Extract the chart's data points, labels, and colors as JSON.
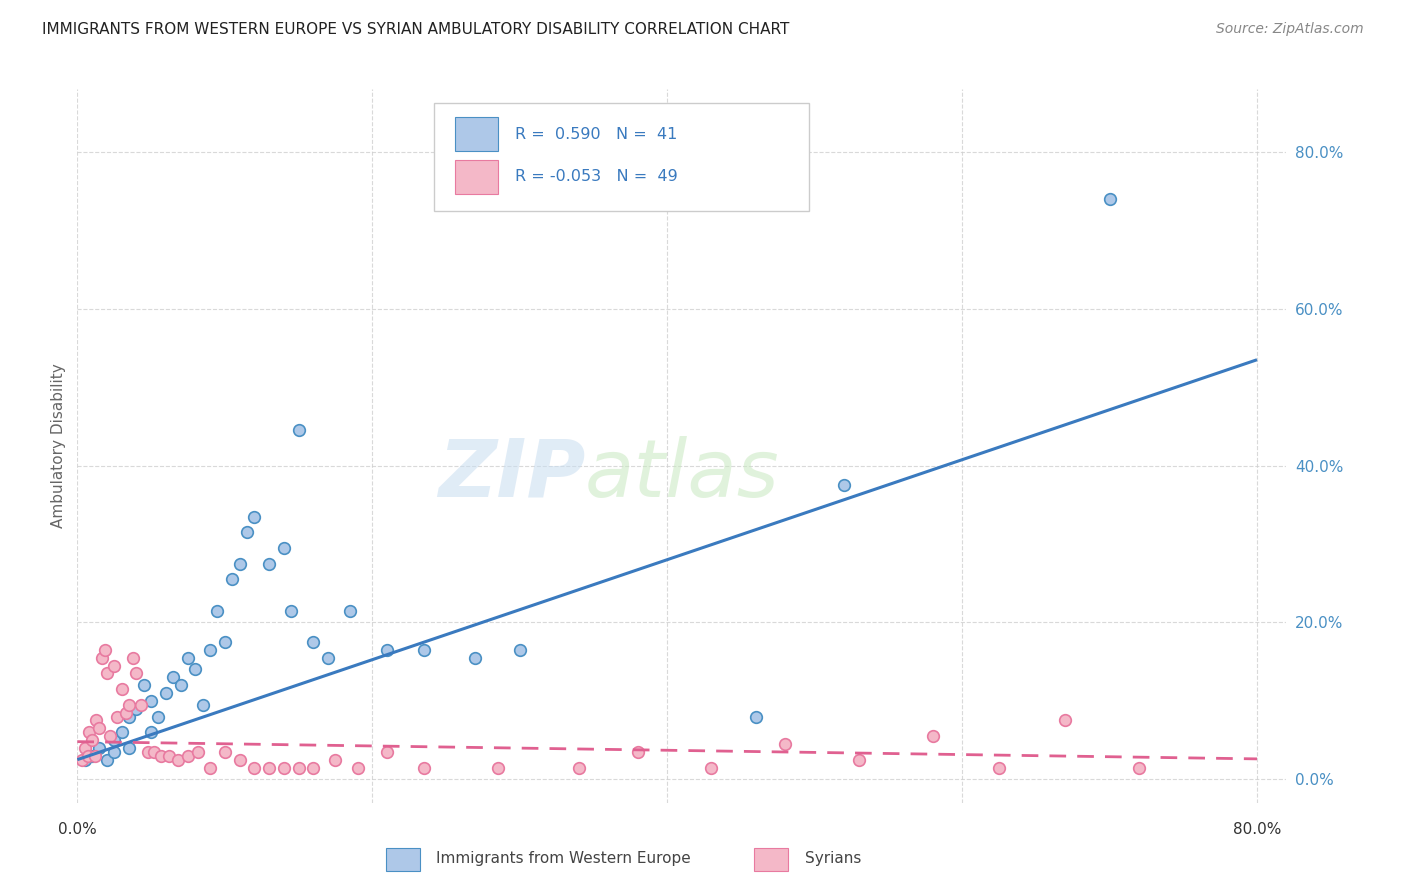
{
  "title": "IMMIGRANTS FROM WESTERN EUROPE VS SYRIAN AMBULATORY DISABILITY CORRELATION CHART",
  "source": "Source: ZipAtlas.com",
  "ylabel": "Ambulatory Disability",
  "xlim": [
    0.0,
    0.82
  ],
  "ylim": [
    -0.03,
    0.88
  ],
  "ytick_values": [
    0.0,
    0.2,
    0.4,
    0.6,
    0.8
  ],
  "xtick_values": [
    0.0,
    0.2,
    0.4,
    0.6,
    0.8
  ],
  "legend_R1": "0.590",
  "legend_N1": "41",
  "legend_R2": "-0.053",
  "legend_N2": "49",
  "blue_color": "#aec8e8",
  "pink_color": "#f4b8c8",
  "blue_edge_color": "#4a90c4",
  "pink_edge_color": "#e87aa0",
  "blue_line_color": "#3a7abf",
  "pink_line_color": "#e06090",
  "right_axis_color": "#4a90c4",
  "blue_scatter_x": [
    0.005,
    0.01,
    0.015,
    0.02,
    0.025,
    0.025,
    0.03,
    0.035,
    0.035,
    0.04,
    0.045,
    0.05,
    0.05,
    0.055,
    0.06,
    0.065,
    0.07,
    0.075,
    0.08,
    0.085,
    0.09,
    0.095,
    0.1,
    0.105,
    0.11,
    0.115,
    0.12,
    0.13,
    0.14,
    0.145,
    0.15,
    0.16,
    0.17,
    0.185,
    0.21,
    0.235,
    0.27,
    0.3,
    0.46,
    0.52,
    0.7
  ],
  "blue_scatter_y": [
    0.025,
    0.03,
    0.04,
    0.025,
    0.05,
    0.035,
    0.06,
    0.08,
    0.04,
    0.09,
    0.12,
    0.1,
    0.06,
    0.08,
    0.11,
    0.13,
    0.12,
    0.155,
    0.14,
    0.095,
    0.165,
    0.215,
    0.175,
    0.255,
    0.275,
    0.315,
    0.335,
    0.275,
    0.295,
    0.215,
    0.445,
    0.175,
    0.155,
    0.215,
    0.165,
    0.165,
    0.155,
    0.165,
    0.08,
    0.375,
    0.74
  ],
  "pink_scatter_x": [
    0.003,
    0.005,
    0.007,
    0.008,
    0.01,
    0.012,
    0.013,
    0.015,
    0.017,
    0.019,
    0.02,
    0.022,
    0.025,
    0.027,
    0.03,
    0.033,
    0.035,
    0.038,
    0.04,
    0.043,
    0.048,
    0.052,
    0.057,
    0.062,
    0.068,
    0.075,
    0.082,
    0.09,
    0.1,
    0.11,
    0.12,
    0.13,
    0.14,
    0.15,
    0.16,
    0.175,
    0.19,
    0.21,
    0.235,
    0.285,
    0.34,
    0.38,
    0.43,
    0.48,
    0.53,
    0.58,
    0.625,
    0.67,
    0.72
  ],
  "pink_scatter_y": [
    0.025,
    0.04,
    0.03,
    0.06,
    0.05,
    0.03,
    0.075,
    0.065,
    0.155,
    0.165,
    0.135,
    0.055,
    0.145,
    0.08,
    0.115,
    0.085,
    0.095,
    0.155,
    0.135,
    0.095,
    0.035,
    0.035,
    0.03,
    0.03,
    0.025,
    0.03,
    0.035,
    0.015,
    0.035,
    0.025,
    0.015,
    0.015,
    0.015,
    0.015,
    0.015,
    0.025,
    0.015,
    0.035,
    0.015,
    0.015,
    0.015,
    0.035,
    0.015,
    0.045,
    0.025,
    0.055,
    0.015,
    0.075,
    0.015
  ],
  "blue_trend_x": [
    0.0,
    0.8
  ],
  "blue_trend_y": [
    0.025,
    0.535
  ],
  "pink_trend_x": [
    0.0,
    0.8
  ],
  "pink_trend_y": [
    0.048,
    0.026
  ],
  "background_color": "#ffffff",
  "grid_color": "#d0d0d0"
}
